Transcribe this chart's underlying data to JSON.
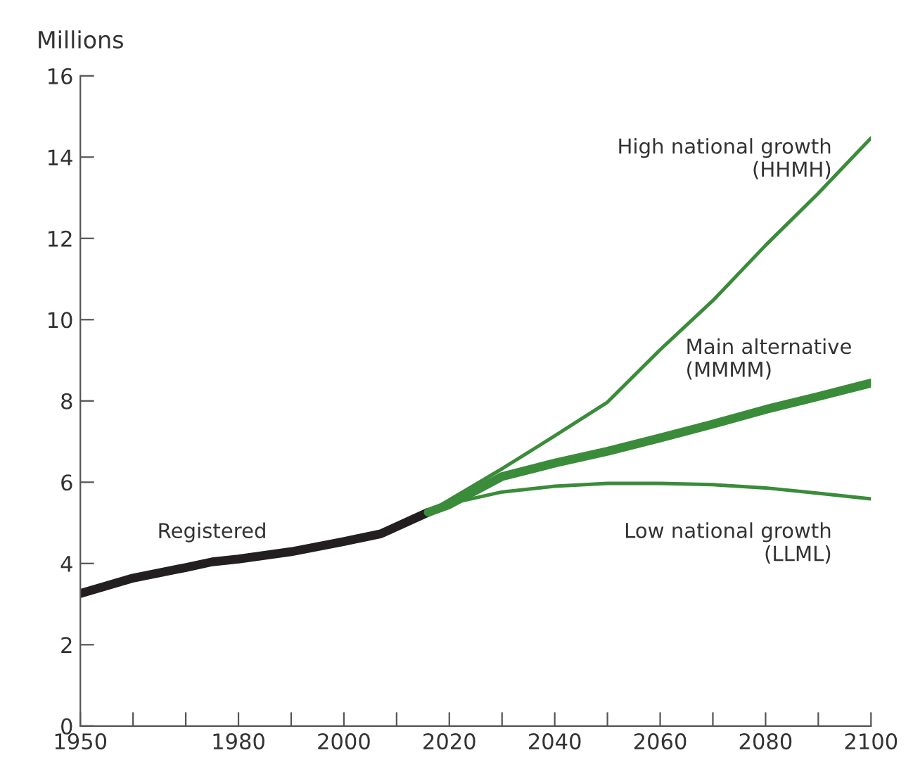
{
  "chart_data": {
    "type": "line",
    "ylabel": "Millions",
    "xlim": [
      1950,
      2100
    ],
    "ylim": [
      0,
      16
    ],
    "xticks": [
      1950,
      {
        "value": 1960,
        "label": null
      },
      {
        "value": 1970,
        "label": null
      },
      1980,
      {
        "value": 1990,
        "label": null
      },
      2000,
      {
        "value": 2010,
        "label": null
      },
      2020,
      {
        "value": 2030,
        "label": null
      },
      2040,
      {
        "value": 2050,
        "label": null
      },
      2060,
      {
        "value": 2070,
        "label": null
      },
      2080,
      {
        "value": 2090,
        "label": null
      },
      2100
    ],
    "yticks": [
      0,
      2,
      4,
      6,
      8,
      10,
      12,
      14,
      16
    ],
    "grid": false,
    "legend": false,
    "marker": "none",
    "line_style": "solid",
    "series": [
      {
        "name": "Registered",
        "color": "#231f20",
        "x": [
          1950,
          1960,
          1970,
          1975,
          1980,
          1990,
          2000,
          2007,
          2016
        ],
        "values": [
          3.26,
          3.64,
          3.9,
          4.04,
          4.11,
          4.29,
          4.54,
          4.73,
          5.26
        ]
      },
      {
        "name": "High national growth\n(HHMH)",
        "color": "#3a8c3a",
        "x": [
          2016,
          2030,
          2040,
          2050,
          2060,
          2070,
          2080,
          2090,
          2100
        ],
        "values": [
          5.26,
          6.33,
          7.14,
          7.97,
          9.26,
          10.47,
          11.83,
          13.11,
          14.47
        ]
      },
      {
        "name": "Main alternative\n(MMMM)",
        "color": "#3a8c3a",
        "x": [
          2016,
          2020,
          2030,
          2040,
          2050,
          2060,
          2070,
          2080,
          2090,
          2100
        ],
        "values": [
          5.26,
          5.45,
          6.14,
          6.47,
          6.76,
          7.09,
          7.43,
          7.79,
          8.11,
          8.44
        ]
      },
      {
        "name": "Low national growth\n(LLML)",
        "color": "#3a8c3a",
        "x": [
          2016,
          2020,
          2030,
          2040,
          2050,
          2060,
          2070,
          2080,
          2090,
          2100
        ],
        "values": [
          5.26,
          5.47,
          5.76,
          5.9,
          5.97,
          5.97,
          5.94,
          5.86,
          5.73,
          5.59
        ]
      }
    ]
  }
}
